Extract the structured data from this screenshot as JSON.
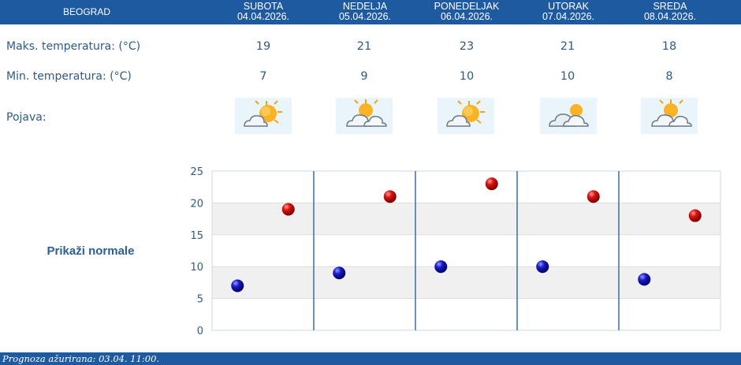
{
  "header": {
    "city": "BEOGRAD",
    "days": [
      {
        "name": "SUBOTA",
        "date": "04.04.2026."
      },
      {
        "name": "NEDELJA",
        "date": "05.04.2026."
      },
      {
        "name": "PONEDELJAK",
        "date": "06.04.2026."
      },
      {
        "name": "UTORAK",
        "date": "07.04.2026."
      },
      {
        "name": "SREDA",
        "date": "08.04.2026."
      }
    ]
  },
  "rows": {
    "max_label": "Maks. temperatura: (°C)",
    "min_label": "Min. temperatura: (°C)",
    "phenomenon_label": "Pojava:"
  },
  "max_temps": [
    "19",
    "21",
    "23",
    "21",
    "18"
  ],
  "min_temps": [
    "7",
    "9",
    "10",
    "10",
    "8"
  ],
  "icons": [
    "partly-sunny-icon",
    "partly-cloudy-icon",
    "partly-sunny-icon",
    "cloudy-sun-icon",
    "partly-cloudy-icon"
  ],
  "show_normals_link": "Prikaži normale",
  "footer": {
    "text": "Prognoza ažurirana:  03.04. 11:00."
  },
  "colors": {
    "header_bg": "#1e5aa0",
    "max_marker": "#cc0000",
    "min_marker": "#0000aa"
  },
  "chart_data": {
    "type": "scatter",
    "ylim": [
      0,
      25
    ],
    "y_ticks": [
      "0",
      "5",
      "10",
      "15",
      "20",
      "25"
    ],
    "categories": [
      "04.04.2026.",
      "05.04.2026.",
      "06.04.2026.",
      "07.04.2026.",
      "08.04.2026."
    ],
    "series": [
      {
        "values": [
          7,
          9,
          10,
          10,
          8
        ],
        "color": "#0000aa"
      },
      {
        "values": [
          19,
          21,
          23,
          21,
          18
        ],
        "color": "#cc0000"
      }
    ],
    "grid": true,
    "alternating_bands": true
  }
}
